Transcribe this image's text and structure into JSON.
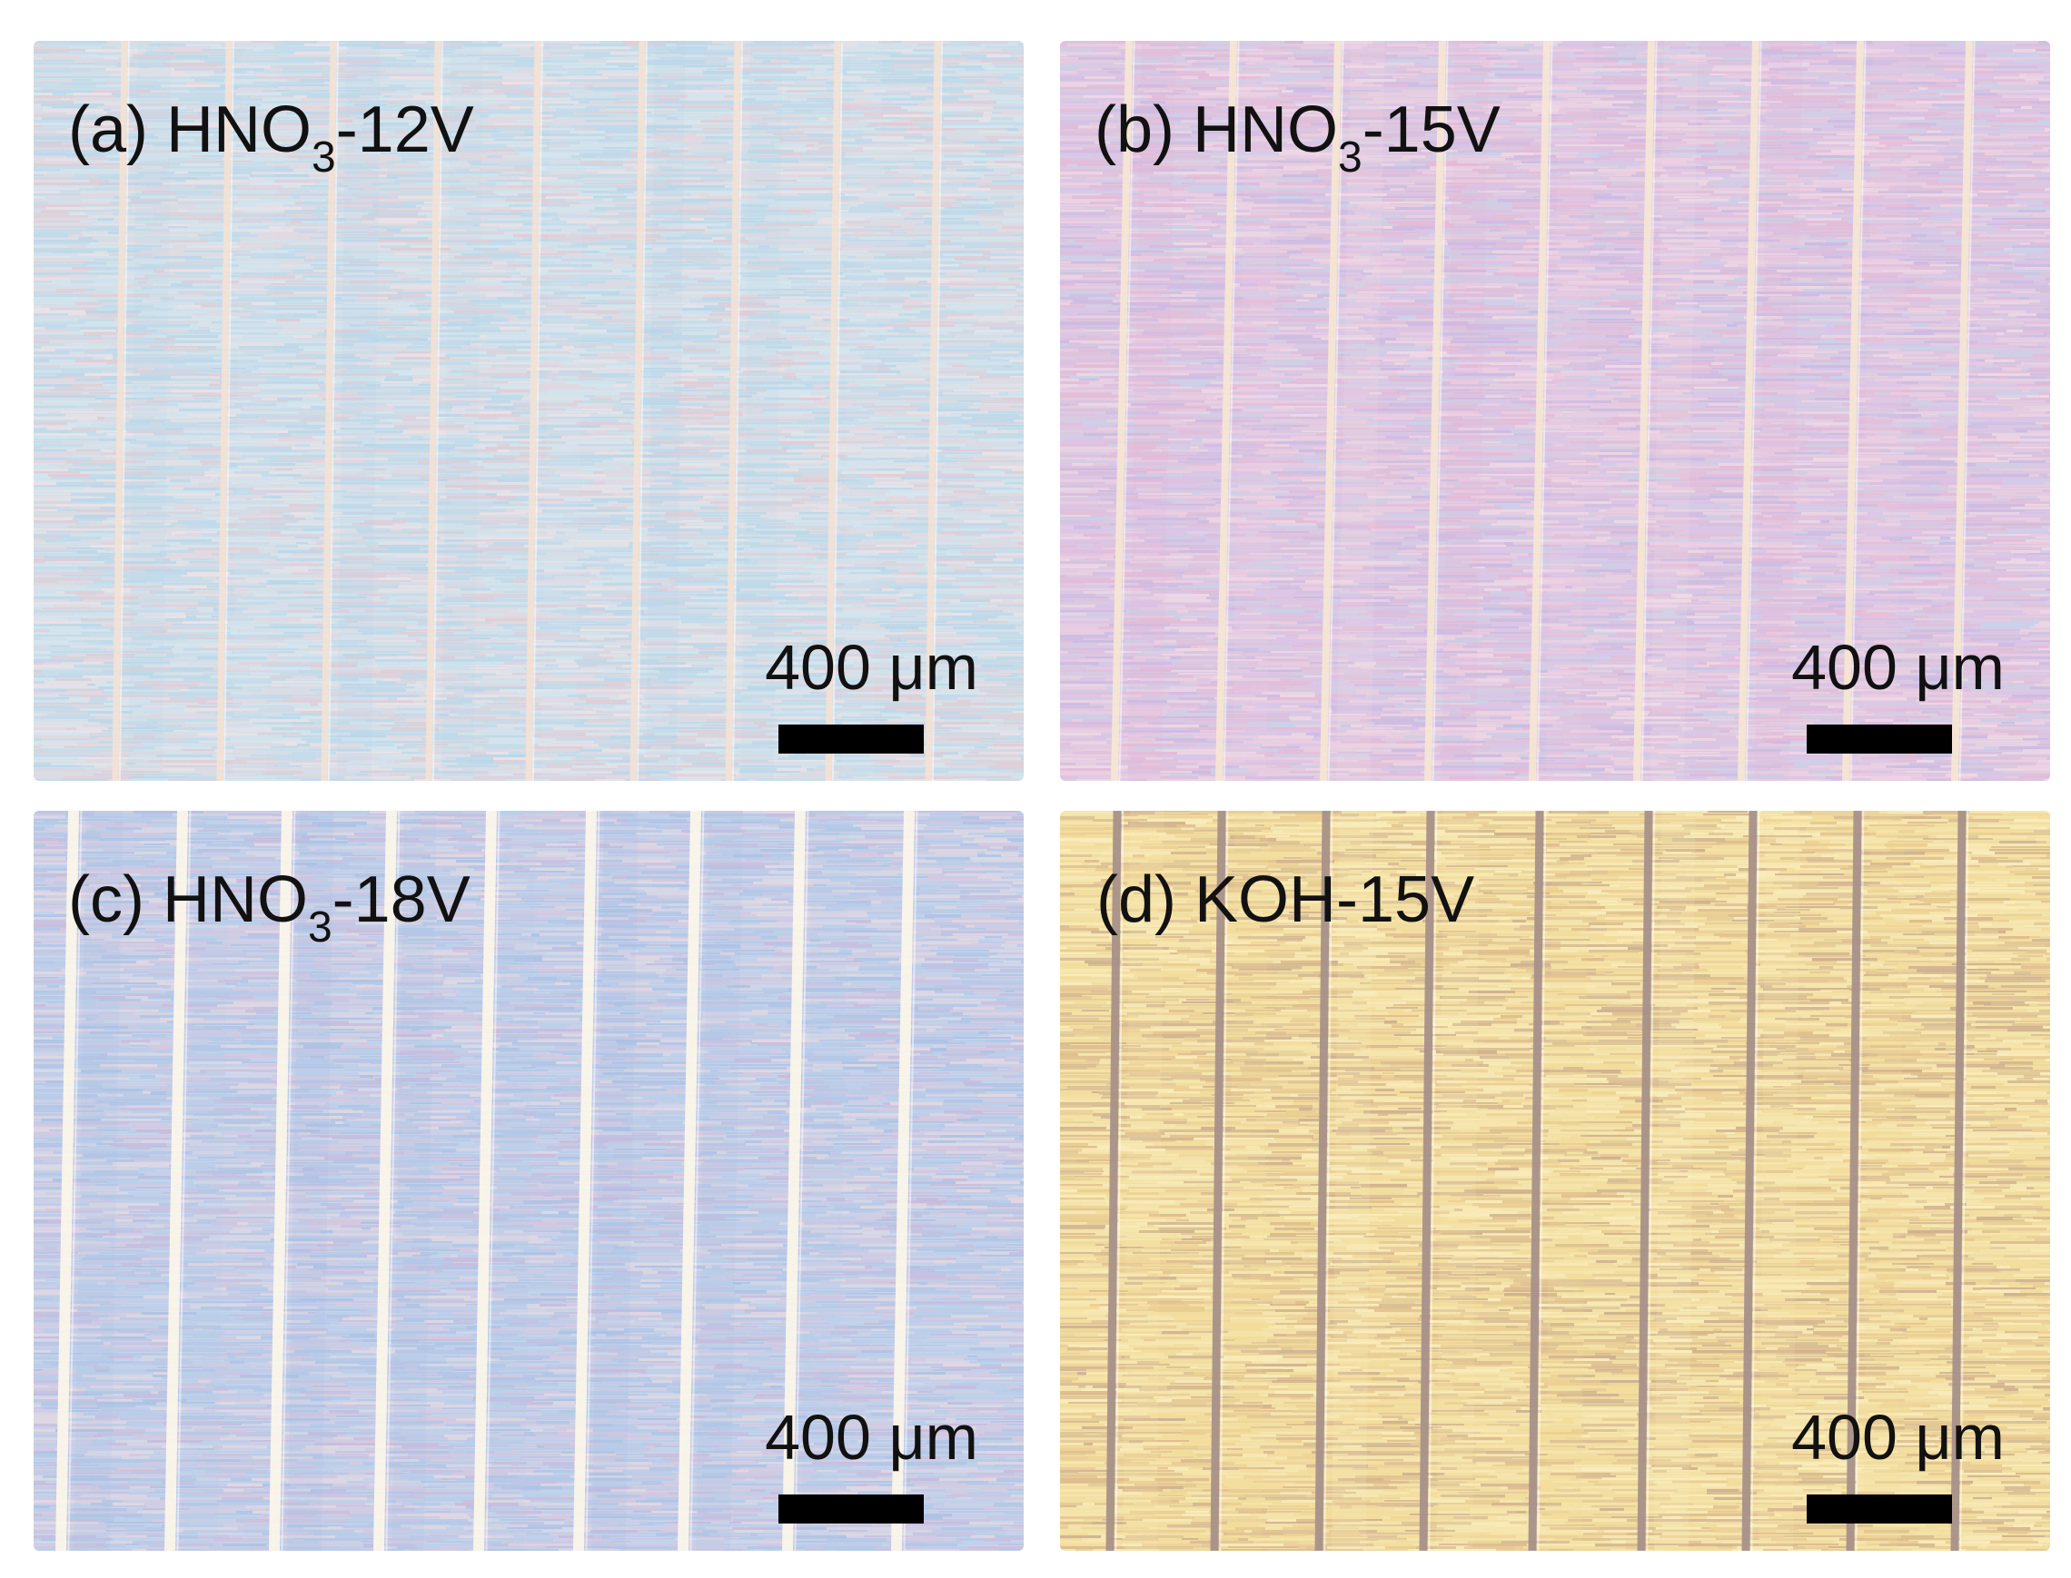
{
  "figure": {
    "panels": [
      {
        "id": "a",
        "label_prefix": "(a) HNO",
        "label_sub": "3",
        "label_suffix": "-12V",
        "scale_text": "400 μm",
        "palette": {
          "base": "#cfe0ea",
          "stripe_colors": [
            "#bcd8ea",
            "#e9d6dd",
            "#d7e6ee",
            "#f0e2e6",
            "#b9d5e8",
            "#e4c9d2"
          ],
          "line_color": "#f3e2d5"
        }
      },
      {
        "id": "b",
        "label_prefix": "(b) HNO",
        "label_sub": "3",
        "label_suffix": "-15V",
        "scale_text": "400 μm",
        "palette": {
          "base": "#dcc8e0",
          "stripe_colors": [
            "#e5b9d6",
            "#c9b9e3",
            "#f0cfe2",
            "#d9c4ea",
            "#f2dbe6",
            "#c8d3ea"
          ],
          "line_color": "#f6e6d4"
        }
      },
      {
        "id": "c",
        "label_prefix": "(c) HNO",
        "label_sub": "3",
        "label_suffix": "-18V",
        "scale_text": "400 μm",
        "palette": {
          "base": "#c9d4ea",
          "stripe_colors": [
            "#aec4e6",
            "#c8b8da",
            "#b6cde9",
            "#d7c5dd",
            "#a9bfe3",
            "#e6d8e0"
          ],
          "line_color": "#fbf6ea"
        }
      },
      {
        "id": "d",
        "label_prefix": "(d) KOH-15V",
        "label_sub": "",
        "label_suffix": "",
        "scale_text": "400 μm",
        "palette": {
          "base": "#f2dfa4",
          "stripe_colors": [
            "#f7e8b2",
            "#e8c98e",
            "#f3dc9a",
            "#d9b68a",
            "#fbefc1",
            "#c8a98c"
          ],
          "line_color": "#a8928a"
        }
      }
    ]
  }
}
